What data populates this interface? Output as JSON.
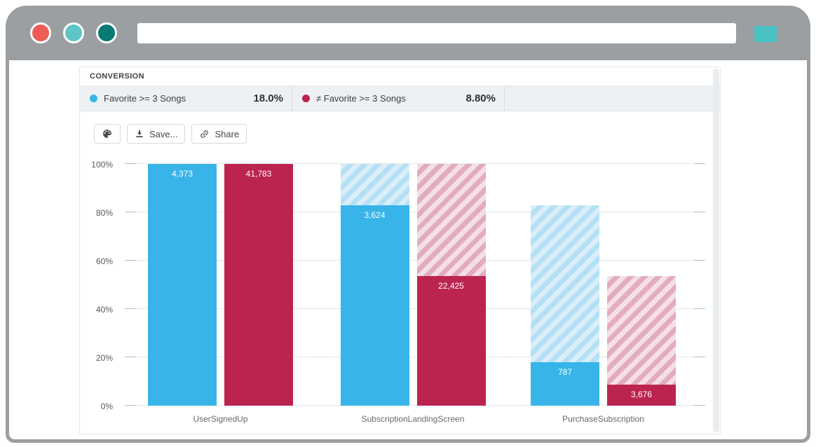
{
  "browser": {
    "traffic_lights": [
      {
        "name": "close",
        "color": "#ee5c55"
      },
      {
        "name": "minimize",
        "color": "#5ec5c7"
      },
      {
        "name": "maximize",
        "color": "#087a75"
      }
    ],
    "frame_color": "#9b9fa2",
    "address_value": "",
    "action_button_color": "#4ac2c4"
  },
  "panel": {
    "title": "CONVERSION",
    "legend": [
      {
        "label": "Favorite >= 3 Songs",
        "value": "18.0%",
        "color": "#38b4e8"
      },
      {
        "label": "≠ Favorite >= 3 Songs",
        "value": "8.80%",
        "color": "#bc2450"
      }
    ],
    "toolbar": {
      "save_label": "Save...",
      "share_label": "Share"
    }
  },
  "chart_data": {
    "type": "bar",
    "variant": "funnel",
    "title": "CONVERSION",
    "categories": [
      "UserSignedUp",
      "SubscriptionLandingScreen",
      "PurchaseSubscription"
    ],
    "series": [
      {
        "name": "Favorite >= 3 Songs",
        "color": "#38b4e8",
        "hatch_colors": [
          "#daeefa",
          "#b4e0f5"
        ],
        "values": [
          4373,
          3624,
          787
        ],
        "value_labels": [
          "4,373",
          "3,624",
          "787"
        ],
        "percents": [
          100,
          82.9,
          18.0
        ],
        "overall_conversion": "18.0%"
      },
      {
        "name": "≠ Favorite >= 3 Songs",
        "color": "#bc2450",
        "hatch_colors": [
          "#f4dfe7",
          "#e3abc0"
        ],
        "values": [
          41783,
          22425,
          3676
        ],
        "value_labels": [
          "41,783",
          "22,425",
          "3,676"
        ],
        "percents": [
          100,
          53.7,
          8.8
        ],
        "overall_conversion": "8.80%"
      }
    ],
    "y_ticks": [
      0,
      20,
      40,
      60,
      80,
      100
    ],
    "y_tick_labels": [
      "0%",
      "20%",
      "40%",
      "60%",
      "80%",
      "100%"
    ],
    "ylim": [
      0,
      100
    ],
    "grid": "dotted-horizontal",
    "legend_position": "top",
    "reference_bars": "hatched bars show previous funnel step height"
  }
}
